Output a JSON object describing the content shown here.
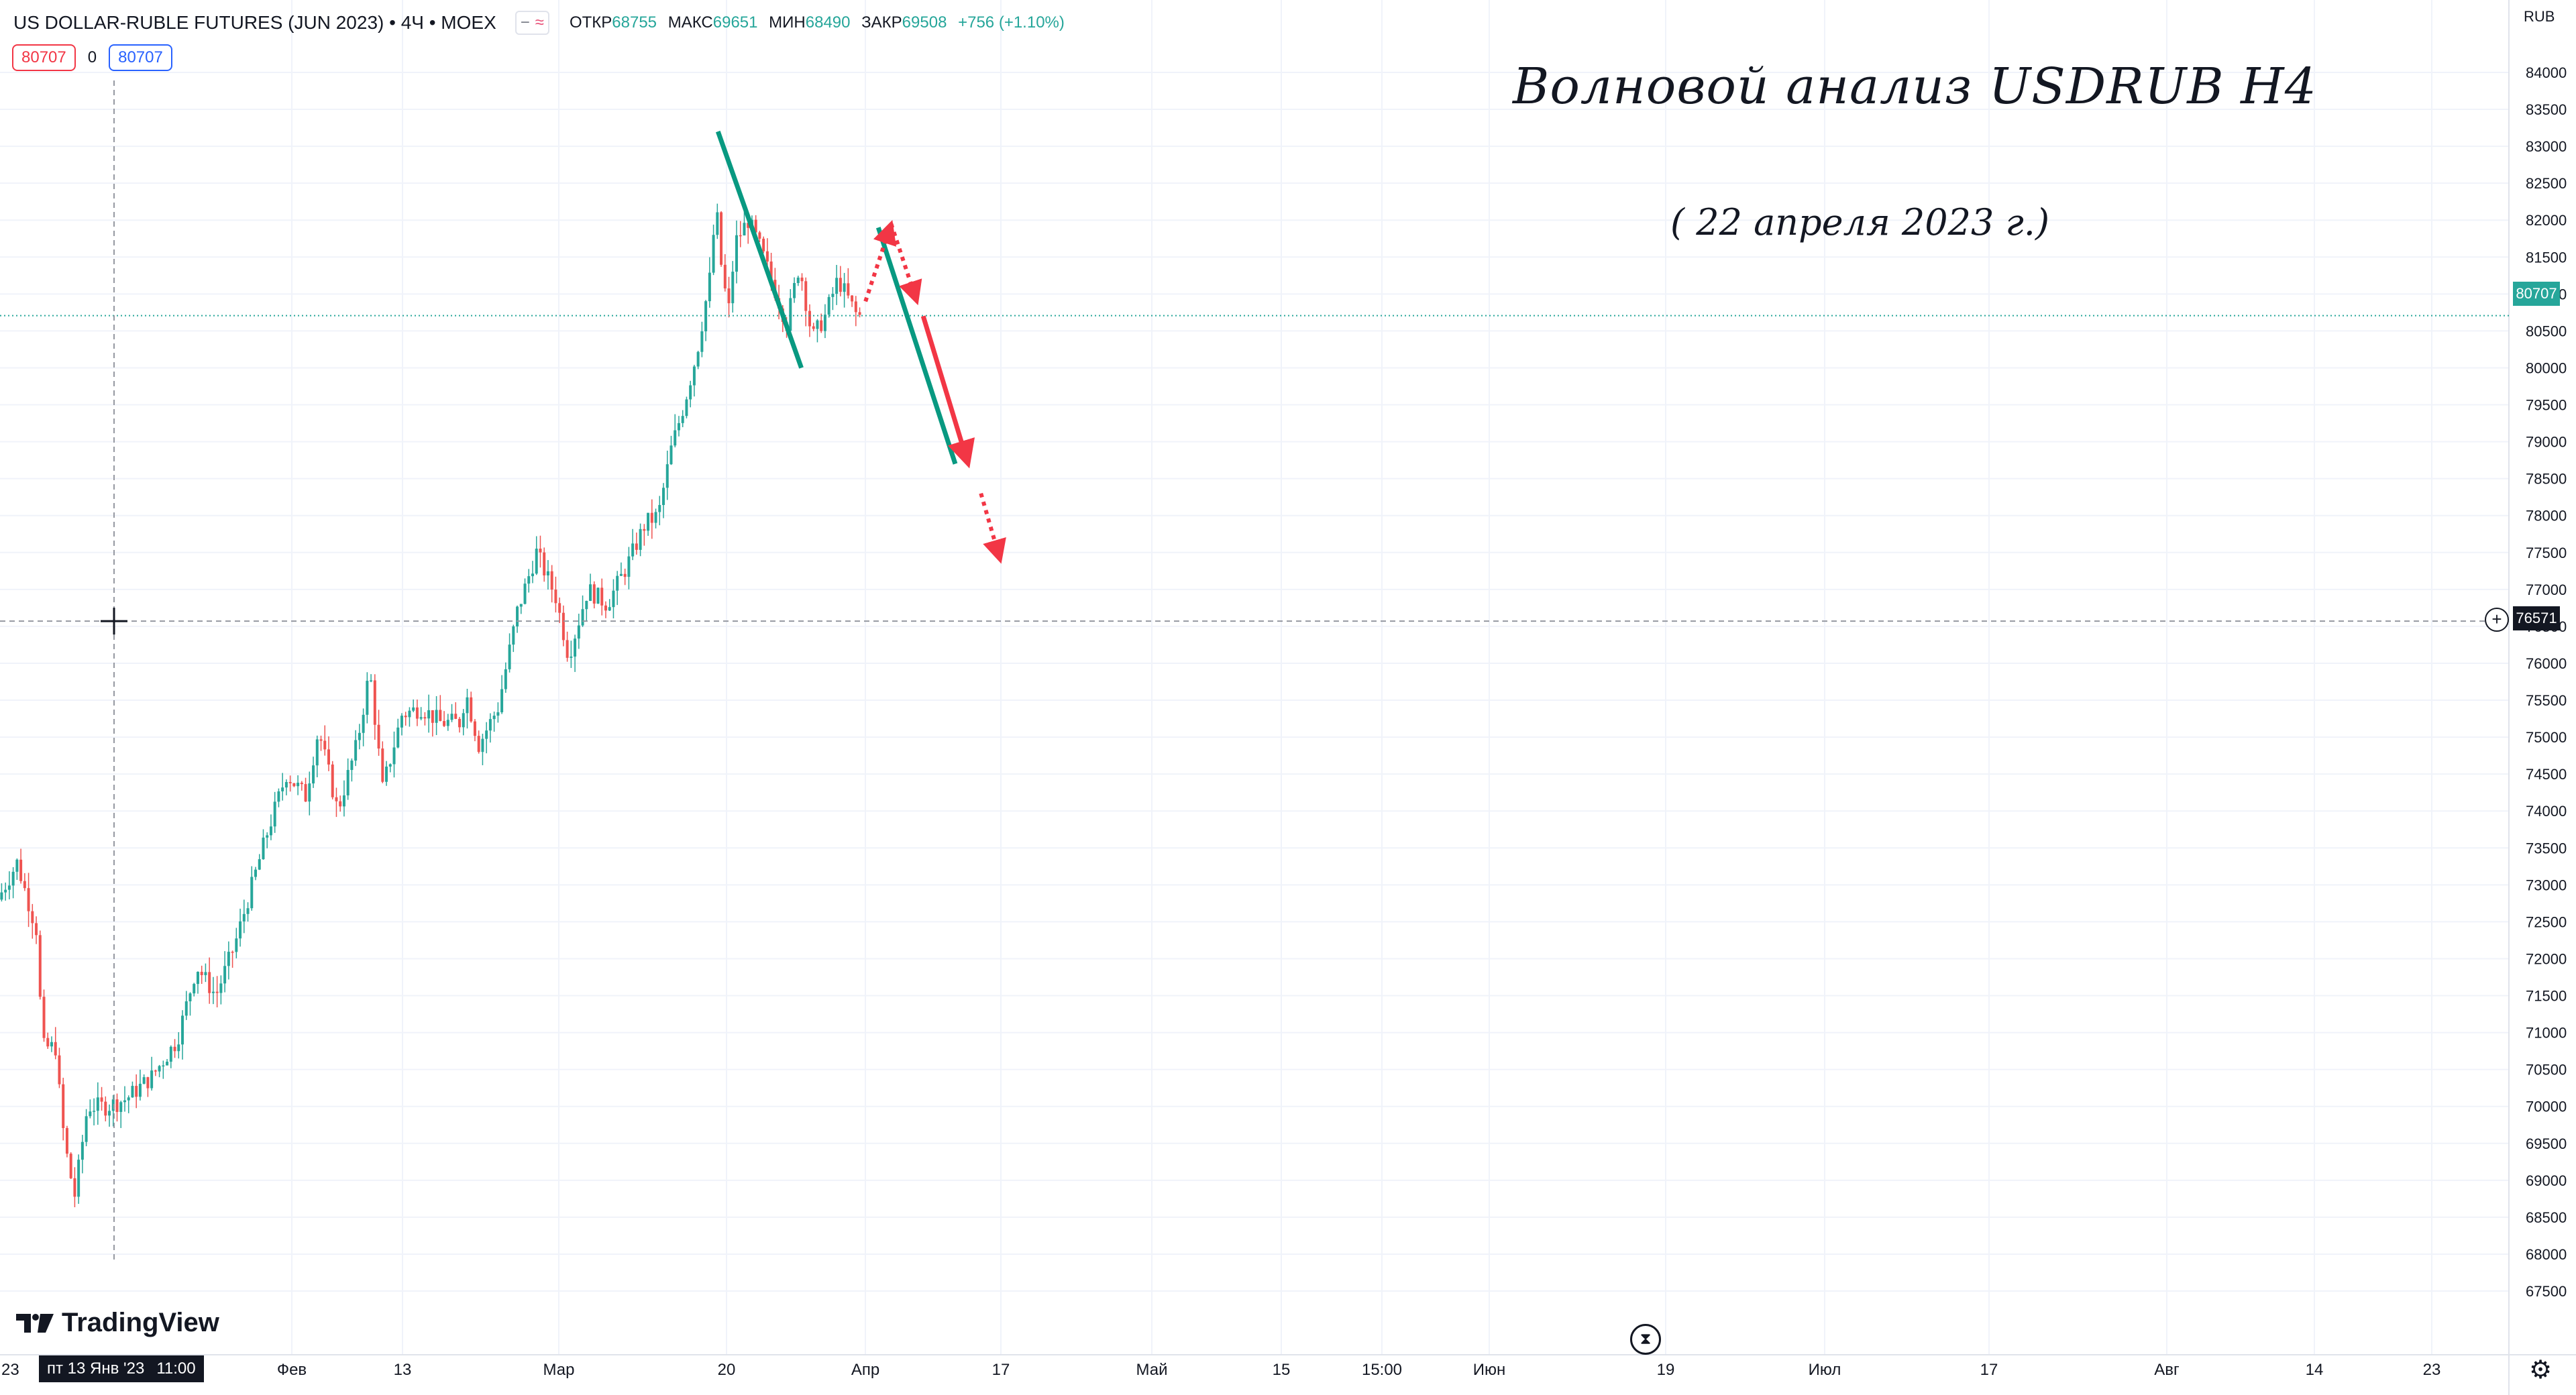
{
  "header": {
    "symbol_title": "US DOLLAR-RUBLE FUTURES (JUN 2023) • 4Ч • MOEX",
    "toggle_minus": "−",
    "toggle_wave": "≈",
    "open_label": "ОТКР",
    "open_value": "68755",
    "high_label": "МАКС",
    "high_value": "69651",
    "low_label": "МИН",
    "low_value": "68490",
    "close_label": "ЗАКР",
    "close_value": "69508",
    "change": "+756 (+1.10%)"
  },
  "trade": {
    "sell_price": "80707",
    "spread": "0",
    "buy_price": "80707"
  },
  "brand": {
    "name": "TradingView",
    "logo_icon": "tradingview-logo-icon"
  },
  "annotations": {
    "title": "Волновой анализ USDRUB H4",
    "date": "( 22 апреля 2023 г.)"
  },
  "price_axis": {
    "currency": "RUB",
    "current_price": "80707",
    "crosshair_price": "76571"
  },
  "time_axis": {
    "crosshair_label": {
      "day": "пт 13 Янв '23",
      "time": "11:00"
    },
    "edge_label": "23"
  },
  "colors": {
    "up": "#26a69a",
    "down": "#ef5350",
    "green_line": "#089981",
    "red_arrow": "#f23645",
    "current_line": "#26a69a"
  },
  "icons": {
    "settings": "gear-icon",
    "hourglass": "hourglass-icon",
    "crosshair_add": "plus-circle-icon"
  },
  "chart_data": {
    "type": "candlestick",
    "title": "US DOLLAR-RUBLE FUTURES (JUN 2023)",
    "timeframe": "4Ч",
    "ylim": [
      67250,
      84250
    ],
    "y_ticks": [
      67500,
      68000,
      68500,
      69000,
      69500,
      70000,
      70500,
      71000,
      71500,
      72000,
      72500,
      73000,
      73500,
      74000,
      74500,
      75000,
      75500,
      76000,
      76500,
      77000,
      77500,
      78000,
      78500,
      79000,
      79500,
      80000,
      80500,
      81000,
      81500,
      82000,
      82500,
      83000,
      83500,
      84000
    ],
    "x_ticks": [
      "Фев",
      "13",
      "Мар",
      "20",
      "Апр",
      "17",
      "Май",
      "15",
      "15:00",
      "Июн",
      "19",
      "Июл",
      "17",
      "Авг",
      "14",
      "23"
    ],
    "price_path": [
      [
        "2023-01-02",
        72800
      ],
      [
        "2023-01-05",
        73300
      ],
      [
        "2023-01-08",
        72400
      ],
      [
        "2023-01-09",
        70800
      ],
      [
        "2023-01-11",
        70800
      ],
      [
        "2023-01-12",
        69800
      ],
      [
        "2023-01-13",
        69200
      ],
      [
        "2023-01-14",
        68800
      ],
      [
        "2023-01-16",
        70000
      ],
      [
        "2023-01-19",
        70000
      ],
      [
        "2023-01-22",
        70100
      ],
      [
        "2023-01-26",
        70400
      ],
      [
        "2023-01-30",
        70900
      ],
      [
        "2023-02-02",
        71900
      ],
      [
        "2023-02-05",
        71500
      ],
      [
        "2023-02-08",
        72200
      ],
      [
        "2023-02-10",
        72800
      ],
      [
        "2023-02-13",
        73700
      ],
      [
        "2023-02-16",
        74500
      ],
      [
        "2023-02-19",
        74200
      ],
      [
        "2023-02-21",
        75100
      ],
      [
        "2023-02-24",
        74000
      ],
      [
        "2023-02-27",
        74900
      ],
      [
        "2023-03-01",
        75900
      ],
      [
        "2023-03-03",
        74300
      ],
      [
        "2023-03-06",
        75300
      ],
      [
        "2023-03-09",
        75400
      ],
      [
        "2023-03-12",
        75200
      ],
      [
        "2023-03-15",
        75200
      ],
      [
        "2023-03-16",
        75600
      ],
      [
        "2023-03-18",
        74900
      ],
      [
        "2023-03-21",
        75400
      ],
      [
        "2023-03-24",
        76700
      ],
      [
        "2023-03-27",
        77500
      ],
      [
        "2023-03-30",
        76900
      ],
      [
        "2023-04-01",
        76100
      ],
      [
        "2023-04-04",
        77000
      ],
      [
        "2023-04-07",
        76800
      ],
      [
        "2023-04-10",
        77300
      ],
      [
        "2023-04-13",
        77900
      ],
      [
        "2023-04-15",
        78000
      ],
      [
        "2023-04-17",
        78900
      ],
      [
        "2023-04-19",
        79500
      ],
      [
        "2023-04-21",
        80200
      ],
      [
        "2023-04-23",
        81200
      ],
      [
        "2023-04-24",
        82200
      ],
      [
        "2023-04-25",
        81200
      ],
      [
        "2023-04-26",
        80800
      ],
      [
        "2023-04-27",
        81700
      ],
      [
        "2023-04-29",
        82000
      ],
      [
        "2023-05-01",
        81600
      ],
      [
        "2023-05-03",
        81100
      ],
      [
        "2023-05-05",
        80600
      ],
      [
        "2023-05-07",
        81400
      ],
      [
        "2023-05-09",
        80400
      ],
      [
        "2023-05-11",
        80700
      ],
      [
        "2023-05-13",
        81200
      ],
      [
        "2023-05-16",
        80700
      ]
    ],
    "current_price": 80707,
    "crosshair": {
      "time": "пт 13 Янв '23 11:00",
      "price": 76571
    },
    "drawings": [
      {
        "kind": "trend_line",
        "color": "green",
        "from": [
          "2023-04-24",
          83200
        ],
        "to": [
          "2023-05-07",
          80000
        ]
      },
      {
        "kind": "trend_line",
        "color": "green",
        "from": [
          "2023-05-19",
          81900
        ],
        "to": [
          "2023-05-31",
          78700
        ]
      },
      {
        "kind": "dotted_arrow",
        "color": "red",
        "from": [
          "2023-05-17",
          80900
        ],
        "to": [
          "2023-05-21",
          81950
        ]
      },
      {
        "kind": "dotted_arrow",
        "color": "red",
        "from": [
          "2023-05-21",
          81950
        ],
        "to": [
          "2023-05-25",
          80900
        ]
      },
      {
        "kind": "arrow",
        "color": "red",
        "from": [
          "2023-05-26",
          80700
        ],
        "to": [
          "2023-06-02",
          78700
        ]
      },
      {
        "kind": "dotted_arrow",
        "color": "red",
        "from": [
          "2023-06-04",
          78300
        ],
        "to": [
          "2023-06-07",
          77400
        ]
      }
    ]
  }
}
